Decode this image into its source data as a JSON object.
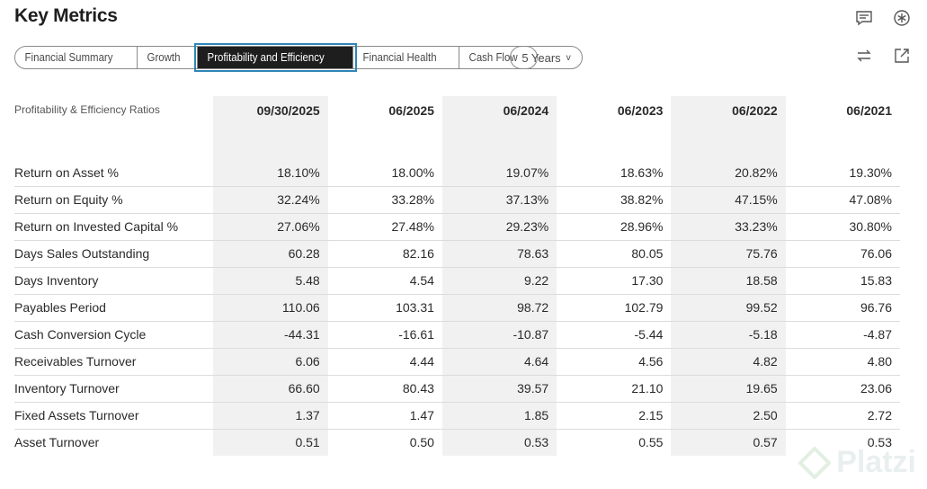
{
  "title": "Key Metrics",
  "tabs": [
    {
      "label": "Financial Summary"
    },
    {
      "label": "Growth"
    },
    {
      "label": "Profitability and Efficiency"
    },
    {
      "label": "Financial Health"
    },
    {
      "label": "Cash Flow"
    }
  ],
  "active_tab": "Profitability and Efficiency",
  "period_select": {
    "label": "5 Years",
    "chevron": "v"
  },
  "icons": [
    "comment-icon",
    "settings-icon",
    "swap-icon",
    "external-link-icon"
  ],
  "table": {
    "header_label": "Profitability & Efficiency Ratios",
    "columns": [
      "09/30/2025",
      "06/2025",
      "06/2024",
      "06/2023",
      "06/2022",
      "06/2021"
    ],
    "rows": [
      {
        "label": "Return on Asset %",
        "values": [
          "18.10%",
          "18.00%",
          "19.07%",
          "18.63%",
          "20.82%",
          "19.30%"
        ]
      },
      {
        "label": "Return on Equity %",
        "values": [
          "32.24%",
          "33.28%",
          "37.13%",
          "38.82%",
          "47.15%",
          "47.08%"
        ]
      },
      {
        "label": "Return on Invested Capital %",
        "values": [
          "27.06%",
          "27.48%",
          "29.23%",
          "28.96%",
          "33.23%",
          "30.80%"
        ]
      },
      {
        "label": "Days Sales Outstanding",
        "values": [
          "60.28",
          "82.16",
          "78.63",
          "80.05",
          "75.76",
          "76.06"
        ]
      },
      {
        "label": "Days Inventory",
        "values": [
          "5.48",
          "4.54",
          "9.22",
          "17.30",
          "18.58",
          "15.83"
        ]
      },
      {
        "label": "Payables Period",
        "values": [
          "110.06",
          "103.31",
          "98.72",
          "102.79",
          "99.52",
          "96.76"
        ]
      },
      {
        "label": "Cash Conversion Cycle",
        "values": [
          "-44.31",
          "-16.61",
          "-10.87",
          "-5.44",
          "-5.18",
          "-4.87"
        ]
      },
      {
        "label": "Receivables Turnover",
        "values": [
          "6.06",
          "4.44",
          "4.64",
          "4.56",
          "4.82",
          "4.80"
        ]
      },
      {
        "label": "Inventory Turnover",
        "values": [
          "66.60",
          "80.43",
          "39.57",
          "21.10",
          "19.65",
          "23.06"
        ]
      },
      {
        "label": "Fixed Assets Turnover",
        "values": [
          "1.37",
          "1.47",
          "1.85",
          "2.15",
          "2.50",
          "2.72"
        ]
      },
      {
        "label": "Asset Turnover",
        "values": [
          "0.51",
          "0.50",
          "0.53",
          "0.55",
          "0.57",
          "0.53"
        ]
      }
    ]
  },
  "watermark": "Platzi",
  "colors": {
    "active_tab_bg": "#1e1e1e",
    "active_outline": "#2f86b6",
    "shade": "#f1f1f1"
  }
}
